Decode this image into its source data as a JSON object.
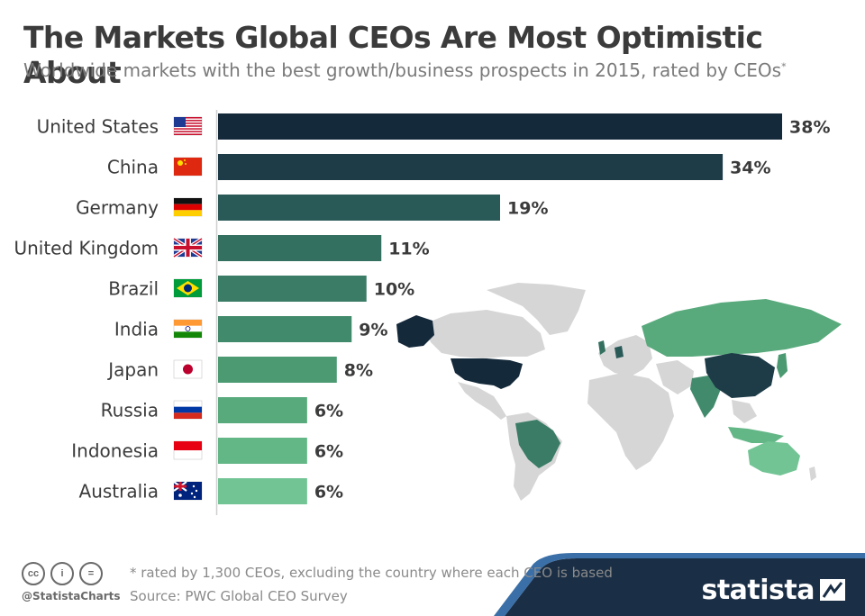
{
  "header": {
    "title": "The Markets Global CEOs Are Most Optimistic About",
    "subtitle": "Worldwide markets with the best growth/business prospects in 2015, rated by CEOs",
    "subtitle_marker": "*"
  },
  "chart_data": {
    "type": "bar",
    "orientation": "horizontal",
    "categories": [
      "United States",
      "China",
      "Germany",
      "United Kingdom",
      "Brazil",
      "India",
      "Japan",
      "Russia",
      "Indonesia",
      "Australia"
    ],
    "values": [
      38,
      34,
      19,
      11,
      10,
      9,
      8,
      6,
      6,
      6
    ],
    "value_labels": [
      "38%",
      "34%",
      "19%",
      "11%",
      "10%",
      "9%",
      "8%",
      "6%",
      "6%",
      "6%"
    ],
    "bar_colors": [
      "#14293a",
      "#1e3c48",
      "#2a5a58",
      "#34705f",
      "#3a7c66",
      "#428a6c",
      "#4c9a72",
      "#58aa7c",
      "#63b686",
      "#72c495"
    ],
    "flag_icons": [
      "us-flag-icon",
      "china-flag-icon",
      "germany-flag-icon",
      "uk-flag-icon",
      "brazil-flag-icon",
      "india-flag-icon",
      "japan-flag-icon",
      "russia-flag-icon",
      "indonesia-flag-icon",
      "australia-flag-icon"
    ],
    "xlim": [
      0,
      38
    ],
    "grid": false,
    "legend": "none"
  },
  "footer": {
    "note": "* rated by 1,300 CEOs, excluding the country where each CEO is based",
    "source": "Source: PWC Global CEO Survey",
    "handle": "@StatistaCharts",
    "license_icons": [
      "cc",
      "i",
      "="
    ],
    "brand": "statista"
  },
  "colors": {
    "title": "#3b3b3b",
    "subtitle": "#7a7a7a",
    "map_base": "#d6d6d6",
    "brand_band": "#1a2e45",
    "brand_accent": "#3a6fa8"
  }
}
